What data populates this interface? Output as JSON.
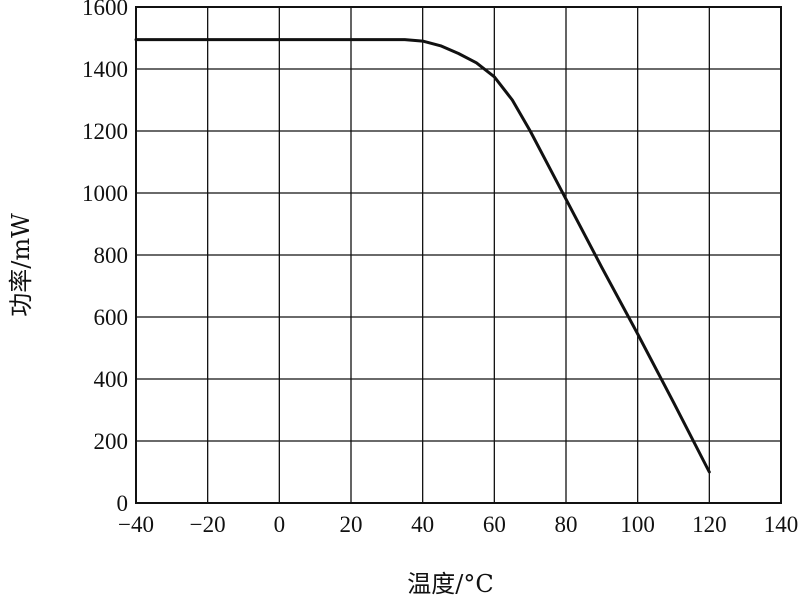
{
  "chart_data": {
    "type": "line",
    "title": "",
    "xlabel": "温度/°C",
    "ylabel": "功率/mW",
    "xlim": [
      -40,
      140
    ],
    "ylim": [
      0,
      1600
    ],
    "x_ticks": [
      -40,
      -20,
      0,
      20,
      40,
      60,
      80,
      100,
      120,
      140
    ],
    "y_ticks": [
      0,
      200,
      400,
      600,
      800,
      1000,
      1200,
      1400,
      1600
    ],
    "x_tick_labels": [
      "−40",
      "−20",
      "0",
      "20",
      "40",
      "60",
      "80",
      "100",
      "120",
      "140"
    ],
    "y_tick_labels": [
      "0",
      "200",
      "400",
      "600",
      "800",
      "1000",
      "1200",
      "1400",
      "1600"
    ],
    "grid": true,
    "legend": "none",
    "series": [
      {
        "color": "#111111",
        "points": [
          [
            -40,
            1495
          ],
          [
            0,
            1495
          ],
          [
            35,
            1495
          ],
          [
            40,
            1490
          ],
          [
            45,
            1475
          ],
          [
            50,
            1450
          ],
          [
            55,
            1420
          ],
          [
            60,
            1375
          ],
          [
            65,
            1300
          ],
          [
            70,
            1200
          ],
          [
            75,
            1090
          ],
          [
            80,
            980
          ],
          [
            90,
            760
          ],
          [
            100,
            545
          ],
          [
            110,
            325
          ],
          [
            120,
            100
          ]
        ]
      }
    ]
  }
}
